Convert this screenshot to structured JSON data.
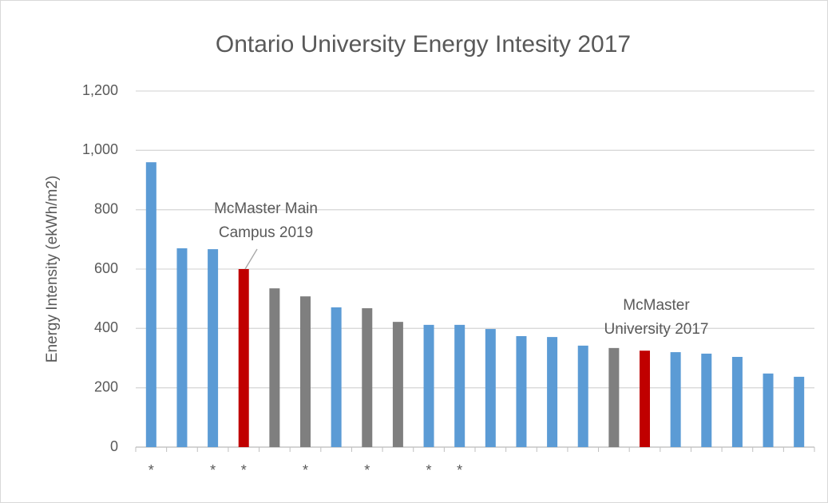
{
  "chart_data": {
    "type": "bar",
    "title": "Ontario University Energy Intesity 2017",
    "y_label": "Energy Intensity (ekWh/m2)",
    "categories": [
      "*",
      null,
      "*",
      "*",
      null,
      "*",
      null,
      "*",
      null,
      "*",
      "*",
      null,
      null,
      null,
      null,
      null,
      null,
      null,
      null,
      null,
      null,
      null
    ],
    "values": [
      960,
      670,
      667,
      600,
      535,
      508,
      471,
      468,
      422,
      412,
      412,
      398,
      374,
      371,
      342,
      334,
      325,
      320,
      315,
      304,
      248,
      237
    ],
    "colors": [
      "#5b9bd5",
      "#5b9bd5",
      "#5b9bd5",
      "#c00000",
      "#7f7f7f",
      "#7f7f7f",
      "#5b9bd5",
      "#7f7f7f",
      "#7f7f7f",
      "#5b9bd5",
      "#5b9bd5",
      "#5b9bd5",
      "#5b9bd5",
      "#5b9bd5",
      "#5b9bd5",
      "#7f7f7f",
      "#c00000",
      "#5b9bd5",
      "#5b9bd5",
      "#5b9bd5",
      "#5b9bd5",
      "#5b9bd5"
    ],
    "annotations": [
      [
        "McMaster Main",
        "Campus 2019"
      ],
      [
        "McMaster",
        "University 2017"
      ]
    ],
    "ylim": [
      0,
      1200
    ],
    "yticks": [
      0,
      200,
      400,
      600,
      800,
      {
        "value": 1000,
        "label": "1,000"
      },
      {
        "value": 1200,
        "label": "1,200"
      }
    ],
    "grid": true
  }
}
